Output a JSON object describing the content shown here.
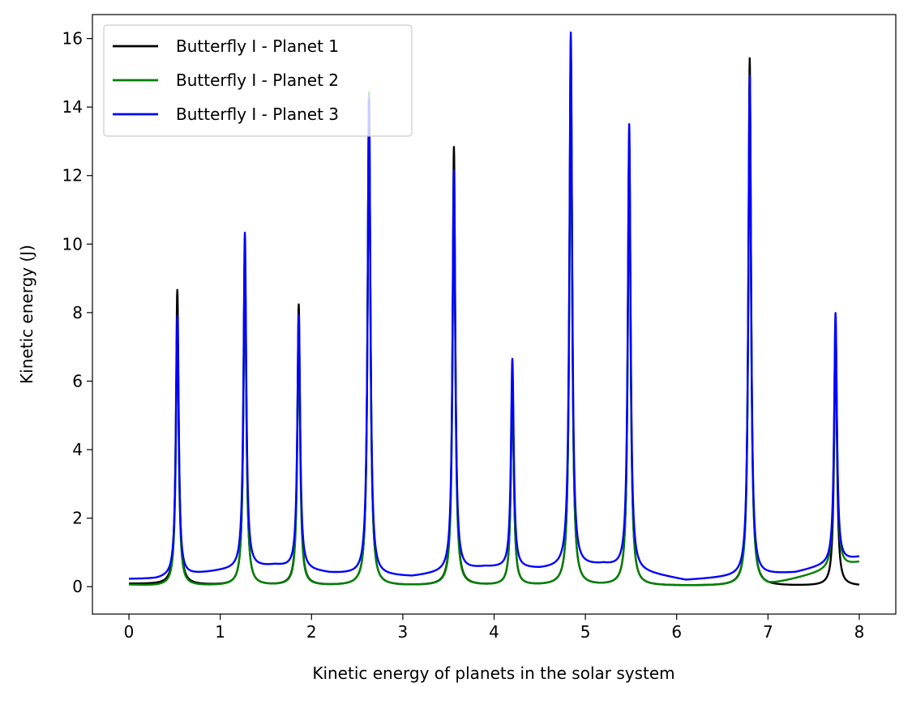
{
  "chart_data": {
    "type": "line",
    "title": "",
    "xlabel": "Kinetic energy of planets in the solar system",
    "ylabel": "Kinetic energy (J)",
    "xlim": [
      -0.4,
      8.4
    ],
    "ylim": [
      -0.8,
      16.7
    ],
    "x_ticks": [
      0,
      1,
      2,
      3,
      4,
      5,
      6,
      7,
      8
    ],
    "y_ticks": [
      0,
      2,
      4,
      6,
      8,
      10,
      12,
      14,
      16
    ],
    "grid": false,
    "legend_position": "top-left",
    "x_range": [
      0,
      8
    ],
    "series": [
      {
        "name": "Butterfly I - Planet 1",
        "color": "#000000",
        "baseline_points": [
          [
            0,
            0.08
          ],
          [
            1.2,
            0.02
          ],
          [
            2.7,
            0.02
          ],
          [
            4.2,
            0.02
          ],
          [
            5.9,
            0.02
          ],
          [
            7.4,
            0.02
          ],
          [
            8,
            0.02
          ]
        ],
        "peaks": [
          {
            "x": 0.53,
            "y": 8.9
          },
          {
            "x": 1.27,
            "y": 10.1
          },
          {
            "x": 1.86,
            "y": 8.5
          },
          {
            "x": 2.63,
            "y": 14.6
          },
          {
            "x": 3.56,
            "y": 13.1
          },
          {
            "x": 4.2,
            "y": 6.4
          },
          {
            "x": 4.84,
            "y": 15.9
          },
          {
            "x": 5.48,
            "y": 13.3
          },
          {
            "x": 6.8,
            "y": 15.7
          },
          {
            "x": 7.74,
            "y": 7.6
          }
        ]
      },
      {
        "name": "Butterfly I - Planet 2",
        "color": "#008000",
        "baseline_points": [
          [
            0,
            0.05
          ],
          [
            0.3,
            0.02
          ],
          [
            2.0,
            0.02
          ],
          [
            3.3,
            0.02
          ],
          [
            5.6,
            0.02
          ],
          [
            7.0,
            0.02
          ],
          [
            8,
            0.7
          ]
        ],
        "peaks": [
          {
            "x": 0.53,
            "y": 7.9
          },
          {
            "x": 1.27,
            "y": 10.0
          },
          {
            "x": 1.86,
            "y": 7.7
          },
          {
            "x": 2.63,
            "y": 14.7
          },
          {
            "x": 3.56,
            "y": 12.0
          },
          {
            "x": 4.2,
            "y": 6.5
          },
          {
            "x": 4.84,
            "y": 15.9
          },
          {
            "x": 5.48,
            "y": 13.3
          },
          {
            "x": 6.8,
            "y": 14.9
          },
          {
            "x": 7.74,
            "y": 7.6
          }
        ]
      },
      {
        "name": "Butterfly I - Planet 3",
        "color": "#0000ff",
        "baseline_points": [
          [
            0,
            0.22
          ],
          [
            0.3,
            0.22
          ],
          [
            1.0,
            0.45
          ],
          [
            1.6,
            0.6
          ],
          [
            2.2,
            0.38
          ],
          [
            3.1,
            0.28
          ],
          [
            3.9,
            0.55
          ],
          [
            4.5,
            0.5
          ],
          [
            5.2,
            0.62
          ],
          [
            6.1,
            0.18
          ],
          [
            7.3,
            0.4
          ],
          [
            8,
            0.85
          ]
        ],
        "peaks": [
          {
            "x": 0.53,
            "y": 7.9
          },
          {
            "x": 1.27,
            "y": 10.1
          },
          {
            "x": 1.86,
            "y": 7.7
          },
          {
            "x": 2.63,
            "y": 14.2
          },
          {
            "x": 3.56,
            "y": 12.0
          },
          {
            "x": 4.2,
            "y": 6.4
          },
          {
            "x": 4.84,
            "y": 15.9
          },
          {
            "x": 5.48,
            "y": 13.3
          },
          {
            "x": 6.8,
            "y": 14.9
          },
          {
            "x": 7.74,
            "y": 7.6
          }
        ]
      }
    ]
  }
}
